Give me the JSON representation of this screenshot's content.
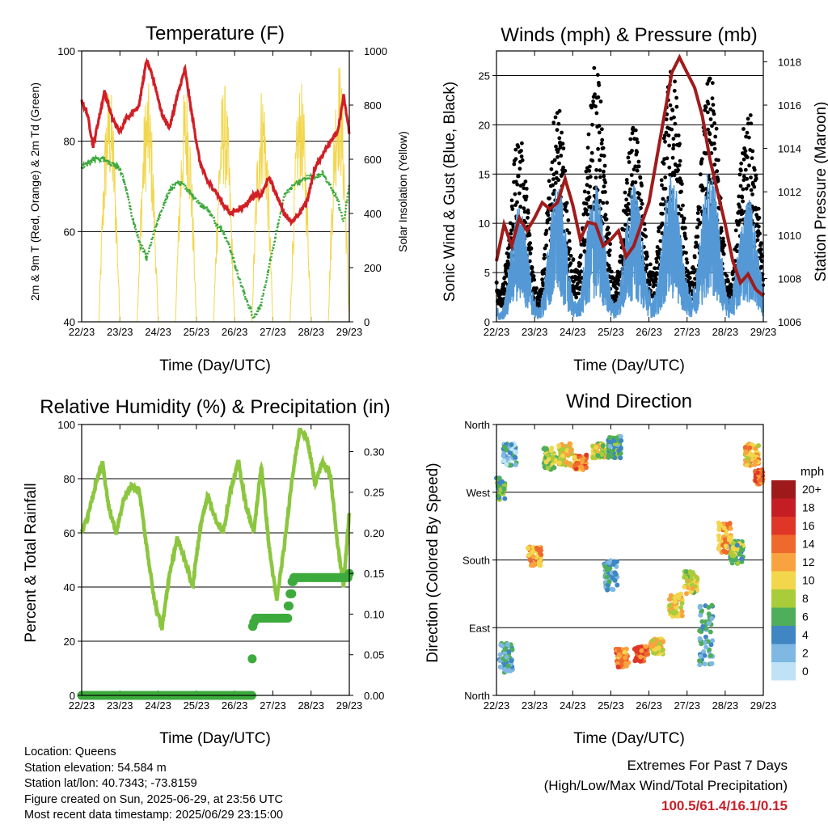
{
  "chart_data": [
    {
      "type": "line",
      "title": "Temperature (F)",
      "xlabel": "Time (Day/UTC)",
      "ylabel": "2m & 9m T (Red, Orange) & 2m Td (Green)",
      "ylabel_right": "Solar Insolation (Yellow)",
      "x_ticks": [
        "22/23",
        "23/23",
        "24/23",
        "25/23",
        "26/23",
        "27/23",
        "28/23",
        "29/23"
      ],
      "ylim": [
        40,
        100
      ],
      "y_ticks": [
        "40",
        "60",
        "80",
        "100"
      ],
      "ylim_right": [
        0,
        1000
      ],
      "y_ticks_right": [
        "0",
        "200",
        "400",
        "600",
        "800",
        "1000"
      ],
      "grid_y": [
        60,
        80,
        100
      ],
      "x_days": [
        0,
        0.15,
        0.3,
        0.45,
        0.6,
        0.8,
        1.0,
        1.15,
        1.3,
        1.5,
        1.7,
        1.9,
        2.1,
        2.3,
        2.5,
        2.7,
        2.9,
        3.1,
        3.3,
        3.5,
        3.7,
        3.9,
        4.1,
        4.3,
        4.5,
        4.7,
        4.9,
        5.1,
        5.3,
        5.5,
        5.7,
        5.9,
        6.1,
        6.3,
        6.5,
        6.7,
        6.85,
        7.0
      ],
      "series": [
        {
          "name": "2m T",
          "color": "#d11f26",
          "values": [
            89,
            86,
            79,
            85,
            91,
            85,
            82,
            85,
            86,
            88,
            98,
            93,
            86,
            83,
            90,
            96,
            85,
            75,
            71,
            69,
            66,
            64,
            65,
            66,
            68,
            68,
            72,
            68,
            64,
            62,
            64,
            67,
            74,
            77,
            80,
            82,
            90,
            82
          ]
        },
        {
          "name": "2m Td",
          "color": "#3aa83a",
          "values": [
            74,
            75,
            76,
            76,
            76,
            75,
            74,
            70,
            64,
            58,
            54,
            60,
            65,
            69,
            71,
            70,
            68,
            66,
            65,
            62,
            60,
            56,
            50,
            45,
            41,
            44,
            52,
            60,
            68,
            70,
            71,
            72,
            72,
            73,
            70,
            67,
            62,
            70
          ]
        },
        {
          "name": "Solar Insolation",
          "color": "#f2d64b",
          "axis": "right",
          "peak": 960
        }
      ]
    },
    {
      "type": "scatter",
      "title": "Winds (mph) & Pressure (mb)",
      "xlabel": "Time (Day/UTC)",
      "ylabel": "Sonic Wind & Gust (Blue, Black)",
      "ylabel_right": "Station Pressure (Maroon)",
      "x_ticks": [
        "22/23",
        "23/23",
        "24/23",
        "25/23",
        "26/23",
        "27/23",
        "28/23",
        "29/23"
      ],
      "ylim": [
        0,
        27.5
      ],
      "y_ticks": [
        "0",
        "5",
        "10",
        "15",
        "20",
        "25"
      ],
      "ylim_right": [
        1006,
        1018.5
      ],
      "y_ticks_right": [
        "1006",
        "1008",
        "1010",
        "1012",
        "1014",
        "1016",
        "1018"
      ],
      "grid_y": [
        5,
        10,
        15,
        20,
        25
      ],
      "x_days": [
        0,
        0.2,
        0.4,
        0.6,
        0.8,
        1.0,
        1.2,
        1.4,
        1.6,
        1.8,
        2.0,
        2.2,
        2.4,
        2.6,
        2.8,
        3.0,
        3.2,
        3.4,
        3.6,
        3.8,
        4.0,
        4.2,
        4.4,
        4.6,
        4.8,
        5.0,
        5.2,
        5.4,
        5.6,
        5.8,
        6.0,
        6.2,
        6.4,
        6.6,
        6.8,
        7.0
      ],
      "series": [
        {
          "name": "Station Pressure",
          "color": "#a01c1c",
          "values": [
            1008.8,
            1010.5,
            1009.5,
            1010.8,
            1010.2,
            1010.8,
            1011.5,
            1011.2,
            1011.5,
            1012.6,
            1011.4,
            1009.8,
            1010.6,
            1010.5,
            1009.5,
            1009.8,
            1010.2,
            1009.0,
            1009.5,
            1010.5,
            1011.5,
            1013.5,
            1015.5,
            1017.5,
            1018.2,
            1017.5,
            1016.8,
            1015.5,
            1013.5,
            1012.0,
            1010.5,
            1008.8,
            1007.8,
            1008.2,
            1007.5,
            1007.2
          ]
        },
        {
          "name": "Sonic Wind",
          "color": "#5499d6",
          "day_max": [
            12,
            14,
            14,
            14,
            15,
            16,
            13,
            13
          ],
          "night_min": [
            1,
            1.5,
            2,
            2,
            2.5,
            3,
            2.5,
            3
          ]
        },
        {
          "name": "Gust",
          "color": "#000000",
          "day_max": [
            18,
            21,
            25,
            19,
            25,
            24,
            21,
            21
          ],
          "night_min": [
            3,
            3,
            5,
            4,
            5,
            5,
            4,
            5
          ]
        }
      ]
    },
    {
      "type": "line",
      "title": "Relative Humidity (%) & Precipitation (in)",
      "xlabel": "Time (Day/UTC)",
      "ylabel": "Percent & Total Rainfall",
      "x_ticks": [
        "22/23",
        "23/23",
        "24/23",
        "25/23",
        "26/23",
        "27/23",
        "28/23",
        "29/23"
      ],
      "ylim": [
        0,
        100
      ],
      "y_ticks": [
        "0",
        "20",
        "40",
        "60",
        "80",
        "100"
      ],
      "ylim_right": [
        0,
        0.3333
      ],
      "y_ticks_right": [
        "0.00",
        "0.05",
        "0.10",
        "0.15",
        "0.20",
        "0.25",
        "0.30"
      ],
      "grid_y": [
        20,
        40,
        60,
        80,
        100
      ],
      "x_days": [
        0,
        0.2,
        0.4,
        0.55,
        0.7,
        0.9,
        1.1,
        1.3,
        1.5,
        1.7,
        1.9,
        2.1,
        2.3,
        2.5,
        2.7,
        2.9,
        3.1,
        3.3,
        3.5,
        3.7,
        3.9,
        4.1,
        4.3,
        4.5,
        4.7,
        4.9,
        5.1,
        5.3,
        5.5,
        5.7,
        5.9,
        6.1,
        6.3,
        6.5,
        6.7,
        6.85,
        7.0
      ],
      "series": [
        {
          "name": "Relative Humidity",
          "color": "#8cc63f",
          "values": [
            60,
            68,
            80,
            86,
            70,
            60,
            72,
            77,
            76,
            55,
            35,
            25,
            45,
            58,
            50,
            40,
            62,
            74,
            65,
            60,
            76,
            86,
            70,
            60,
            85,
            55,
            35,
            55,
            80,
            98,
            95,
            78,
            86,
            82,
            55,
            40,
            68
          ]
        },
        {
          "name": "Total Rainfall",
          "color": "#3caa3c",
          "axis": "right",
          "steps": [
            [
              0,
              0.0
            ],
            [
              4.45,
              0.0
            ],
            [
              4.46,
              0.045
            ],
            [
              4.47,
              0.085
            ],
            [
              4.5,
              0.09
            ],
            [
              4.55,
              0.095
            ],
            [
              5.35,
              0.095
            ],
            [
              5.4,
              0.11
            ],
            [
              5.45,
              0.125
            ],
            [
              5.5,
              0.14
            ],
            [
              5.55,
              0.145
            ],
            [
              7.0,
              0.15
            ]
          ]
        }
      ]
    },
    {
      "type": "scatter",
      "title": "Wind Direction",
      "xlabel": "Time (Day/UTC)",
      "ylabel": "Direction (Colored By Speed)",
      "x_ticks": [
        "22/23",
        "23/23",
        "24/23",
        "25/23",
        "26/23",
        "27/23",
        "28/23",
        "29/23"
      ],
      "y_ticks": [
        "North",
        "East",
        "South",
        "West",
        "North"
      ],
      "ylim": [
        0,
        360
      ],
      "grid_y": [
        90,
        180,
        270
      ],
      "legend_title": "mph",
      "legend": [
        "20+",
        "18",
        "16",
        "14",
        "12",
        "10",
        "8",
        "6",
        "4",
        "2",
        "0"
      ],
      "legend_colors": [
        "#9e1a1a",
        "#c41e24",
        "#df3628",
        "#f0692c",
        "#f9a340",
        "#f2d64b",
        "#a8cc3a",
        "#4fae5a",
        "#3f86c2",
        "#7eb8e3",
        "#bfe3f5"
      ],
      "clusters": [
        {
          "day": 0.05,
          "dir": 275,
          "spread": 30,
          "speed": 6
        },
        {
          "day": 0.25,
          "dir": 50,
          "spread": 40,
          "speed": 4
        },
        {
          "day": 0.35,
          "dir": 320,
          "spread": 30,
          "speed": 3
        },
        {
          "day": 1.0,
          "dir": 185,
          "spread": 25,
          "speed": 12
        },
        {
          "day": 1.4,
          "dir": 315,
          "spread": 30,
          "speed": 8
        },
        {
          "day": 1.8,
          "dir": 320,
          "spread": 30,
          "speed": 10
        },
        {
          "day": 2.2,
          "dir": 310,
          "spread": 20,
          "speed": 13
        },
        {
          "day": 2.7,
          "dir": 325,
          "spread": 20,
          "speed": 9
        },
        {
          "day": 3.1,
          "dir": 330,
          "spread": 30,
          "speed": 5
        },
        {
          "day": 3.0,
          "dir": 160,
          "spread": 40,
          "speed": 4
        },
        {
          "day": 3.3,
          "dir": 50,
          "spread": 25,
          "speed": 13
        },
        {
          "day": 3.8,
          "dir": 55,
          "spread": 20,
          "speed": 14
        },
        {
          "day": 4.2,
          "dir": 65,
          "spread": 20,
          "speed": 10
        },
        {
          "day": 4.7,
          "dir": 120,
          "spread": 30,
          "speed": 10
        },
        {
          "day": 5.1,
          "dir": 150,
          "spread": 30,
          "speed": 9
        },
        {
          "day": 5.5,
          "dir": 80,
          "spread": 80,
          "speed": 4
        },
        {
          "day": 6.0,
          "dir": 210,
          "spread": 40,
          "speed": 12
        },
        {
          "day": 6.3,
          "dir": 190,
          "spread": 30,
          "speed": 7
        },
        {
          "day": 6.7,
          "dir": 320,
          "spread": 30,
          "speed": 11
        },
        {
          "day": 6.95,
          "dir": 290,
          "spread": 20,
          "speed": 14
        }
      ]
    }
  ],
  "station_info": {
    "location": "Location: Queens",
    "elevation": "Station elevation: 54.584 m",
    "latlon": "Station lat/lon: 40.7343; -73.8159",
    "created": "Figure created on Sun, 2025-06-29, at 23:56 UTC",
    "recent": "Most recent data timestamp: 2025/06/29 23:15:00"
  },
  "extremes": {
    "title": "Extremes For Past 7 Days",
    "subtitle": "(High/Low/Max Wind/Total Precipitation)",
    "values": "100.5/61.4/16.1/0.15"
  }
}
